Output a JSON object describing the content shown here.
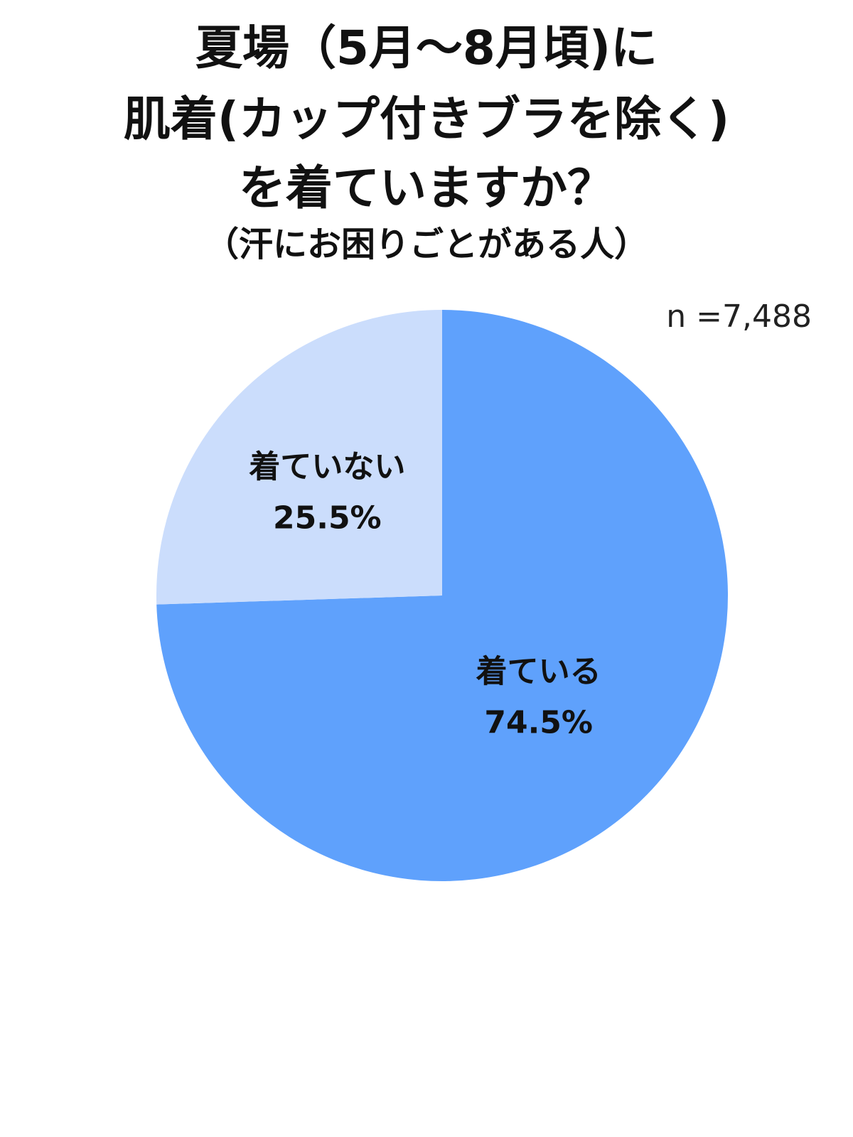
{
  "chart_data": {
    "type": "pie",
    "title_lines": [
      "夏場（5月〜8月頃)に",
      "肌着(カップ付きブラを除く)",
      "を着ていますか？"
    ],
    "subtitle": "（汗にお困りごとがある人）",
    "sample_size": "n =7,488",
    "slices": [
      {
        "label": "着ている",
        "value": 74.5,
        "value_label": "74.5%",
        "color": "#5fa1fc"
      },
      {
        "label": "着ていない",
        "value": 25.5,
        "value_label": "25.5%",
        "color": "#cbddfc"
      }
    ],
    "start_direction": "12 o'clock",
    "order": "clockwise"
  }
}
